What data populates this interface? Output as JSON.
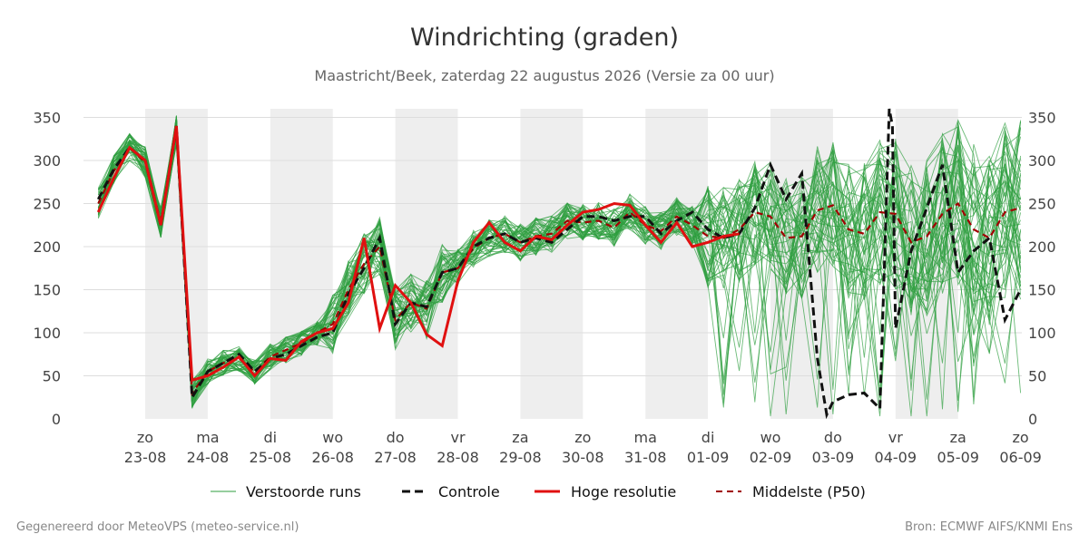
{
  "chart_data": {
    "type": "line",
    "title": "Windrichting (graden)",
    "subtitle": "Maastricht/Beek, zaterdag 22 augustus 2026 (Versie za 00 uur)",
    "ylim": [
      0,
      360
    ],
    "yticks": [
      0,
      50,
      100,
      150,
      200,
      250,
      300,
      350
    ],
    "xlim": [
      -0.75,
      14.0
    ],
    "grid": true,
    "legend_position": "bottom",
    "days": [
      {
        "x": 0,
        "dow": "zo",
        "date": "23-08"
      },
      {
        "x": 1,
        "dow": "ma",
        "date": "24-08"
      },
      {
        "x": 2,
        "dow": "di",
        "date": "25-08"
      },
      {
        "x": 3,
        "dow": "wo",
        "date": "26-08"
      },
      {
        "x": 4,
        "dow": "do",
        "date": "27-08"
      },
      {
        "x": 5,
        "dow": "vr",
        "date": "28-08"
      },
      {
        "x": 6,
        "dow": "za",
        "date": "29-08"
      },
      {
        "x": 7,
        "dow": "zo",
        "date": "30-08"
      },
      {
        "x": 8,
        "dow": "ma",
        "date": "31-08"
      },
      {
        "x": 9,
        "dow": "di",
        "date": "01-09"
      },
      {
        "x": 10,
        "dow": "wo",
        "date": "02-09"
      },
      {
        "x": 11,
        "dow": "do",
        "date": "03-09"
      },
      {
        "x": 12,
        "dow": "vr",
        "date": "04-09"
      },
      {
        "x": 13,
        "dow": "za",
        "date": "05-09"
      },
      {
        "x": 14,
        "dow": "zo",
        "date": "06-09"
      }
    ],
    "shaded_days": [
      0,
      2,
      4,
      6,
      8,
      10,
      12
    ],
    "colors": {
      "ensemble": "#2e9e3e",
      "control": "#111111",
      "high_res": "#e01010",
      "median": "#a00000",
      "shade": "#eeeeee",
      "grid": "#dddddd"
    },
    "series": [
      {
        "name": "Controle",
        "style": "dashed",
        "x": [
          -0.75,
          -0.5,
          -0.25,
          0,
          0.25,
          0.5,
          0.75,
          1,
          1.25,
          1.5,
          1.75,
          2,
          2.25,
          2.5,
          2.75,
          3,
          3.25,
          3.5,
          3.75,
          4,
          4.25,
          4.5,
          4.75,
          5,
          5.25,
          5.5,
          5.75,
          6,
          6.25,
          6.5,
          6.75,
          7,
          7.25,
          7.5,
          7.75,
          8,
          8.25,
          8.5,
          8.75,
          9,
          9.25,
          9.5,
          9.75,
          10,
          10.25,
          10.5,
          10.75,
          11,
          11.25,
          11.5,
          11.75,
          12,
          12.25,
          12.5,
          12.75,
          13,
          13.25,
          13.5,
          13.75,
          14
        ],
        "values": [
          255,
          290,
          315,
          300,
          225,
          340,
          25,
          55,
          65,
          75,
          55,
          70,
          75,
          85,
          95,
          100,
          145,
          175,
          210,
          110,
          135,
          130,
          170,
          175,
          200,
          210,
          215,
          205,
          210,
          205,
          220,
          235,
          235,
          230,
          235,
          235,
          215,
          230,
          240,
          220,
          210,
          215,
          245,
          240,
          210,
          215,
          245,
          250,
          220,
          215,
          240,
          235,
          215,
          210,
          235,
          250,
          220,
          210,
          235,
          240
        ],
        "control_tail": {
          "x": [
            9.5,
            9.75,
            10,
            10.25,
            10.5,
            10.75,
            10.9,
            11.0,
            11.25,
            11.5,
            11.75,
            11.9,
            11.95,
            12.0,
            12.25,
            12.5,
            12.75,
            13,
            13.25,
            13.5,
            13.75,
            14
          ],
          "values": [
            215,
            245,
            295,
            255,
            285,
            70,
            5,
            20,
            28,
            30,
            12,
            360,
            340,
            105,
            195,
            245,
            295,
            170,
            195,
            210,
            115,
            150
          ]
        }
      },
      {
        "name": "Hoge resolutie",
        "style": "solid",
        "x": [
          -0.75,
          -0.5,
          -0.25,
          0,
          0.25,
          0.5,
          0.75,
          1,
          1.25,
          1.5,
          1.75,
          2,
          2.25,
          2.5,
          2.75,
          3,
          3.25,
          3.5,
          3.75,
          4,
          4.25,
          4.5,
          4.75,
          5,
          5.25,
          5.5,
          5.75,
          6,
          6.25,
          6.5,
          6.75,
          7,
          7.25,
          7.5,
          7.75,
          8,
          8.25,
          8.5,
          8.75,
          9,
          9.25,
          9.5
        ],
        "values": [
          240,
          280,
          315,
          300,
          225,
          340,
          45,
          50,
          60,
          72,
          50,
          70,
          68,
          90,
          100,
          105,
          135,
          210,
          105,
          155,
          135,
          98,
          85,
          160,
          205,
          228,
          205,
          195,
          212,
          208,
          225,
          240,
          243,
          250,
          248,
          225,
          205,
          228,
          200,
          205,
          212,
          215
        ]
      },
      {
        "name": "Middelste (P50)",
        "style": "dashed",
        "x": [
          -0.75,
          -0.5,
          -0.25,
          0,
          0.25,
          0.5,
          0.75,
          1,
          1.25,
          1.5,
          1.75,
          2,
          2.25,
          2.5,
          2.75,
          3,
          3.25,
          3.5,
          3.75,
          4,
          4.25,
          4.5,
          4.75,
          5,
          5.25,
          5.5,
          5.75,
          6,
          6.25,
          6.5,
          6.75,
          7,
          7.25,
          7.5,
          7.75,
          8,
          8.25,
          8.5,
          8.75,
          9,
          9.25,
          9.5,
          9.75,
          10,
          10.25,
          10.5,
          10.75,
          11,
          11.25,
          11.5,
          11.75,
          12,
          12.25,
          12.5,
          12.75,
          13,
          13.25,
          13.5,
          13.75,
          14
        ],
        "values": [
          250,
          288,
          315,
          298,
          228,
          335,
          30,
          55,
          65,
          70,
          55,
          72,
          80,
          88,
          100,
          110,
          150,
          180,
          200,
          115,
          135,
          128,
          170,
          175,
          198,
          210,
          215,
          205,
          212,
          215,
          230,
          228,
          230,
          222,
          240,
          225,
          218,
          235,
          225,
          212,
          210,
          220,
          240,
          235,
          210,
          212,
          242,
          248,
          220,
          215,
          240,
          238,
          205,
          212,
          238,
          250,
          220,
          210,
          240,
          245
        ]
      },
      {
        "name": "Verstoorde runs",
        "style": "thin"
      }
    ]
  },
  "legend": {
    "ensemble": "Verstoorde runs",
    "control": "Controle",
    "high_res": "Hoge resolutie",
    "median": "Middelste (P50)"
  },
  "footer": {
    "left": "Gegenereerd door MeteoVPS (meteo-service.nl)",
    "right": "Bron: ECMWF AIFS/KNMI Ens"
  }
}
